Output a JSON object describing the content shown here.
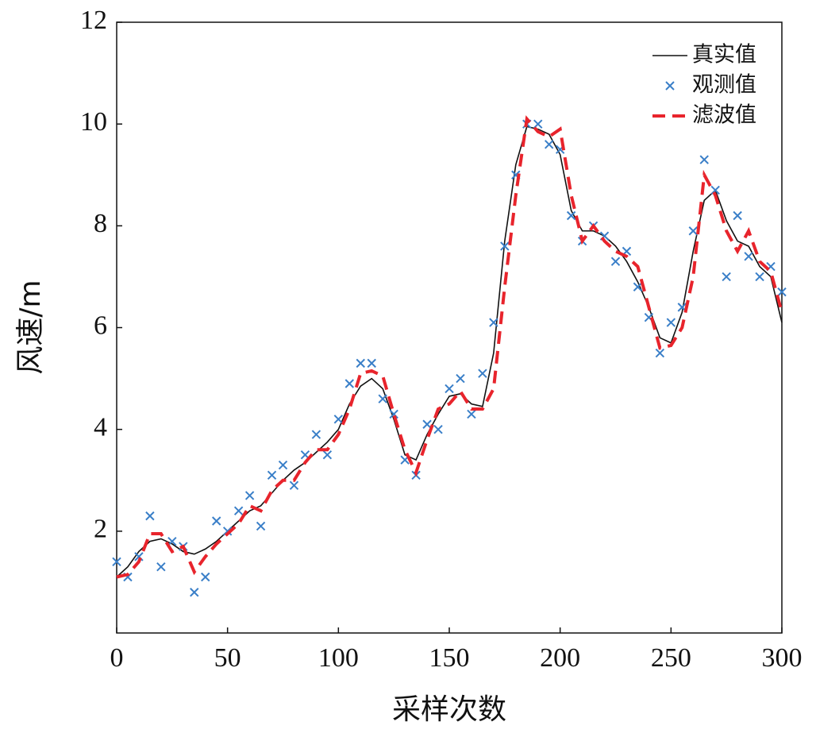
{
  "chart_data": {
    "type": "line",
    "xlabel": "采样次数",
    "ylabel": "风速/m",
    "x": [
      0,
      5,
      10,
      15,
      20,
      25,
      30,
      35,
      40,
      45,
      50,
      55,
      60,
      65,
      70,
      75,
      80,
      85,
      90,
      95,
      100,
      105,
      110,
      115,
      120,
      125,
      130,
      135,
      140,
      145,
      150,
      155,
      160,
      165,
      170,
      175,
      180,
      185,
      190,
      195,
      200,
      205,
      210,
      215,
      220,
      225,
      230,
      235,
      240,
      245,
      250,
      255,
      260,
      265,
      270,
      275,
      280,
      285,
      290,
      295,
      300
    ],
    "series": [
      {
        "name": "真实值",
        "color": "#111111",
        "line_style": "solid",
        "values": [
          1.1,
          1.3,
          1.6,
          1.8,
          1.85,
          1.75,
          1.6,
          1.55,
          1.65,
          1.8,
          2.0,
          2.2,
          2.4,
          2.5,
          2.75,
          3.0,
          3.2,
          3.35,
          3.55,
          3.75,
          4.0,
          4.5,
          4.85,
          5.0,
          4.8,
          4.2,
          3.5,
          3.4,
          3.9,
          4.3,
          4.65,
          4.7,
          4.5,
          4.45,
          5.5,
          7.7,
          9.2,
          9.95,
          9.9,
          9.8,
          9.4,
          8.3,
          7.9,
          7.9,
          7.8,
          7.6,
          7.3,
          6.9,
          6.4,
          5.8,
          5.7,
          6.3,
          7.5,
          8.5,
          8.7,
          8.1,
          7.7,
          7.6,
          7.2,
          7.0,
          6.1
        ]
      },
      {
        "name": "观测值",
        "color": "#3a7fc8",
        "line_style": "none",
        "marker": "x",
        "values": [
          1.4,
          1.1,
          1.5,
          2.3,
          1.3,
          1.8,
          1.7,
          0.8,
          1.1,
          2.2,
          2.0,
          2.4,
          2.7,
          2.1,
          3.1,
          3.3,
          2.9,
          3.5,
          3.9,
          3.5,
          4.2,
          4.9,
          5.3,
          5.3,
          4.6,
          4.3,
          3.4,
          3.1,
          4.1,
          4.0,
          4.8,
          5.0,
          4.3,
          5.1,
          6.1,
          7.6,
          9.0,
          10.0,
          10.0,
          9.6,
          9.5,
          8.2,
          7.7,
          8.0,
          7.8,
          7.3,
          7.5,
          6.8,
          6.2,
          5.5,
          6.1,
          6.4,
          7.9,
          9.3,
          8.7,
          7.0,
          8.2,
          7.4,
          7.0,
          7.2,
          6.7
        ]
      },
      {
        "name": "滤波值",
        "color": "#e8242c",
        "line_style": "dashed",
        "values": [
          1.1,
          1.15,
          1.4,
          1.95,
          1.95,
          1.6,
          1.7,
          1.2,
          1.5,
          1.75,
          1.95,
          2.15,
          2.5,
          2.4,
          2.8,
          3.0,
          3.0,
          3.35,
          3.6,
          3.6,
          3.9,
          4.4,
          5.1,
          5.15,
          5.05,
          4.3,
          3.6,
          3.15,
          3.8,
          4.4,
          4.5,
          4.75,
          4.4,
          4.4,
          4.8,
          6.8,
          8.6,
          10.1,
          9.85,
          9.75,
          9.9,
          8.6,
          7.7,
          8.0,
          7.7,
          7.5,
          7.4,
          7.2,
          6.4,
          5.6,
          5.65,
          6.0,
          7.0,
          9.0,
          8.6,
          7.9,
          7.5,
          7.9,
          7.3,
          7.1,
          6.3
        ]
      }
    ],
    "xlim": [
      0,
      300
    ],
    "xticks": [
      0,
      50,
      100,
      150,
      200,
      250,
      300
    ],
    "ylim": [
      0,
      12
    ],
    "yticks": [
      2,
      4,
      6,
      8,
      10,
      12
    ],
    "legend": "upper right"
  }
}
